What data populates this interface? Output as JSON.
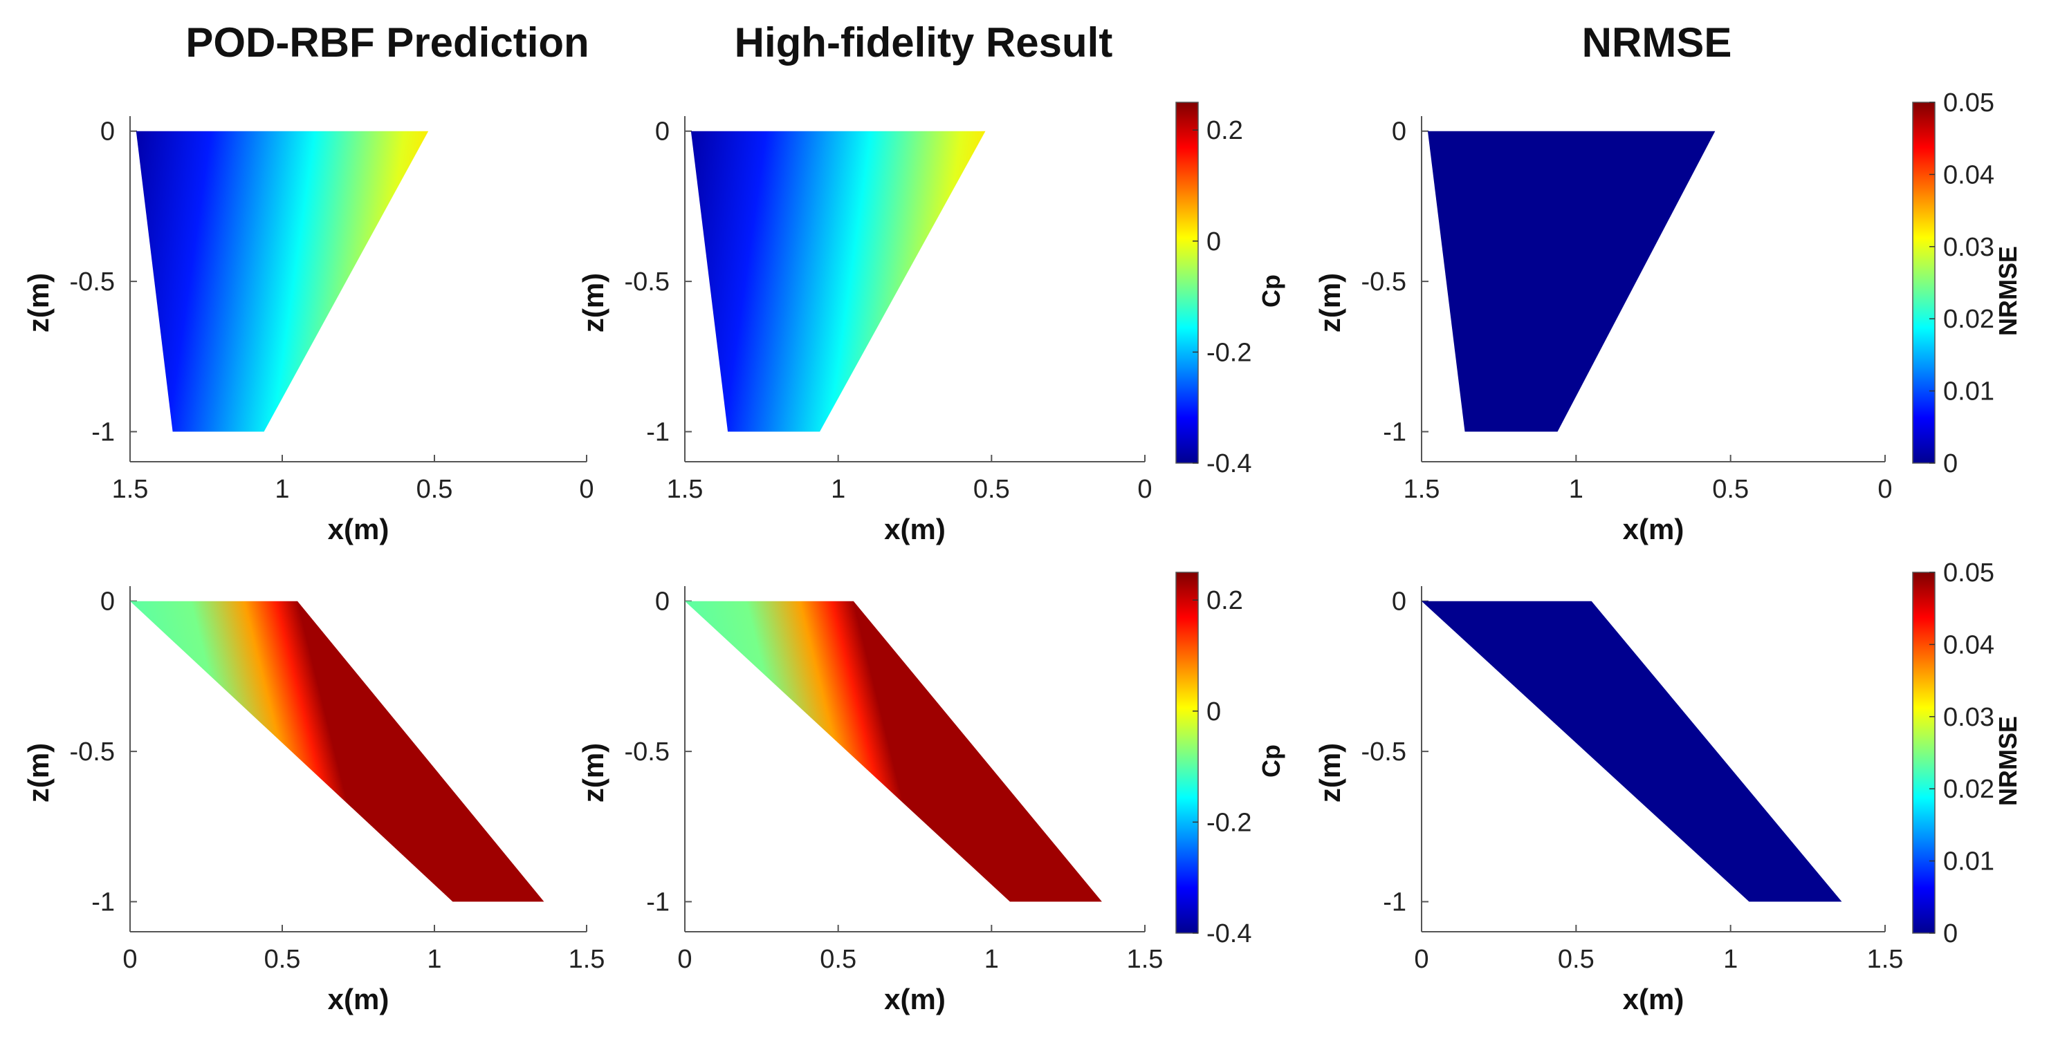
{
  "figure": {
    "column_titles": [
      "POD-RBF Prediction",
      "High-fidelity Result",
      "NRMSE"
    ]
  },
  "colormaps": {
    "jet": [
      "#00008f",
      "#0000ff",
      "#0080ff",
      "#00ffff",
      "#80ff80",
      "#ffff00",
      "#ff8000",
      "#ff0000",
      "#800000"
    ]
  },
  "chart_data": [
    {
      "type": "heatmap",
      "title": "POD-RBF Prediction",
      "row": 0,
      "col": 0,
      "xlabel": "x(m)",
      "ylabel": "z(m)",
      "xlim": [
        0,
        1.5
      ],
      "ylim": [
        -1.1,
        0.05
      ],
      "x_reversed": true,
      "xticks": [
        1.5,
        1,
        0.5,
        0
      ],
      "xticklabels": [
        "1.5",
        "1",
        "0.5",
        "0"
      ],
      "yticks": [
        0,
        -0.5,
        -1
      ],
      "yticklabels": [
        "0",
        "-0.5",
        "-1"
      ],
      "wing": {
        "root_le": [
          0.52,
          0
        ],
        "root_te": [
          1.48,
          0
        ],
        "tip_le": [
          1.06,
          -1
        ],
        "tip_te": [
          1.36,
          -1
        ]
      },
      "field": "Cp",
      "value_range": [
        -0.38,
        0.02
      ],
      "colorbar": null
    },
    {
      "type": "heatmap",
      "title": "High-fidelity Result",
      "row": 0,
      "col": 1,
      "xlabel": "x(m)",
      "ylabel": "z(m)",
      "xlim": [
        0,
        1.5
      ],
      "ylim": [
        -1.1,
        0.05
      ],
      "x_reversed": true,
      "xticks": [
        1.5,
        1,
        0.5,
        0
      ],
      "xticklabels": [
        "1.5",
        "1",
        "0.5",
        "0"
      ],
      "yticks": [
        0,
        -0.5,
        -1
      ],
      "yticklabels": [
        "0",
        "-0.5",
        "-1"
      ],
      "wing": {
        "root_le": [
          0.52,
          0
        ],
        "root_te": [
          1.48,
          0
        ],
        "tip_le": [
          1.06,
          -1
        ],
        "tip_te": [
          1.36,
          -1
        ]
      },
      "field": "Cp",
      "value_range": [
        -0.38,
        0.02
      ],
      "colorbar": {
        "label": "Cp",
        "range": [
          -0.4,
          0.25
        ],
        "ticks": [
          0.2,
          0,
          -0.2,
          -0.4
        ],
        "ticklabels": [
          "0.2",
          "0",
          "-0.2",
          "-0.4"
        ]
      }
    },
    {
      "type": "heatmap",
      "title": "NRMSE",
      "row": 0,
      "col": 2,
      "xlabel": "x(m)",
      "ylabel": "z(m)",
      "xlim": [
        0,
        1.5
      ],
      "ylim": [
        -1.1,
        0.05
      ],
      "x_reversed": true,
      "xticks": [
        1.5,
        1,
        0.5,
        0
      ],
      "xticklabels": [
        "1.5",
        "1",
        "0.5",
        "0"
      ],
      "yticks": [
        0,
        -0.5,
        -1
      ],
      "yticklabels": [
        "0",
        "-0.5",
        "-1"
      ],
      "wing": {
        "root_le": [
          0.55,
          0
        ],
        "root_te": [
          1.48,
          0
        ],
        "tip_le": [
          1.06,
          -1
        ],
        "tip_te": [
          1.36,
          -1
        ]
      },
      "field": "NRMSE",
      "value_range": [
        0,
        0
      ],
      "colorbar": {
        "label": "NRMSE",
        "range": [
          0,
          0.05
        ],
        "ticks": [
          0.05,
          0.04,
          0.03,
          0.02,
          0.01,
          0
        ],
        "ticklabels": [
          "0.05",
          "0.04",
          "0.03",
          "0.02",
          "0.01",
          "0"
        ]
      }
    },
    {
      "type": "heatmap",
      "title": "",
      "row": 1,
      "col": 0,
      "xlabel": "x(m)",
      "ylabel": "z(m)",
      "xlim": [
        0,
        1.5
      ],
      "ylim": [
        -1.1,
        0.05
      ],
      "x_reversed": false,
      "xticks": [
        0,
        0.5,
        1,
        1.5
      ],
      "xticklabels": [
        "0",
        "0.5",
        "1",
        "1.5"
      ],
      "yticks": [
        0,
        -0.5,
        -1
      ],
      "yticklabels": [
        "0",
        "-0.5",
        "-1"
      ],
      "wing": {
        "root_le": [
          0,
          0
        ],
        "root_te": [
          0.55,
          0
        ],
        "tip_le": [
          1.06,
          -1
        ],
        "tip_te": [
          1.36,
          -1
        ]
      },
      "field": "Cp",
      "value_range": [
        0.23,
        -0.1
      ],
      "colorbar": null
    },
    {
      "type": "heatmap",
      "title": "",
      "row": 1,
      "col": 1,
      "xlabel": "x(m)",
      "ylabel": "z(m)",
      "xlim": [
        0,
        1.5
      ],
      "ylim": [
        -1.1,
        0.05
      ],
      "x_reversed": false,
      "xticks": [
        0,
        0.5,
        1,
        1.5
      ],
      "xticklabels": [
        "0",
        "0.5",
        "1",
        "1.5"
      ],
      "yticks": [
        0,
        -0.5,
        -1
      ],
      "yticklabels": [
        "0",
        "-0.5",
        "-1"
      ],
      "wing": {
        "root_le": [
          0,
          0
        ],
        "root_te": [
          0.55,
          0
        ],
        "tip_le": [
          1.06,
          -1
        ],
        "tip_te": [
          1.36,
          -1
        ]
      },
      "field": "Cp",
      "value_range": [
        0.23,
        -0.1
      ],
      "colorbar": {
        "label": "Cp",
        "range": [
          -0.4,
          0.25
        ],
        "ticks": [
          0.2,
          0,
          -0.2,
          -0.4
        ],
        "ticklabels": [
          "0.2",
          "0",
          "-0.2",
          "-0.4"
        ]
      }
    },
    {
      "type": "heatmap",
      "title": "",
      "row": 1,
      "col": 2,
      "xlabel": "x(m)",
      "ylabel": "z(m)",
      "xlim": [
        0,
        1.5
      ],
      "ylim": [
        -1.1,
        0.05
      ],
      "x_reversed": false,
      "xticks": [
        0,
        0.5,
        1,
        1.5
      ],
      "xticklabels": [
        "0",
        "0.5",
        "1",
        "1.5"
      ],
      "yticks": [
        0,
        -0.5,
        -1
      ],
      "yticklabels": [
        "0",
        "-0.5",
        "-1"
      ],
      "wing": {
        "root_le": [
          0,
          0
        ],
        "root_te": [
          0.55,
          0
        ],
        "tip_le": [
          1.06,
          -1
        ],
        "tip_te": [
          1.36,
          -1
        ]
      },
      "field": "NRMSE",
      "value_range": [
        0,
        0
      ],
      "colorbar": {
        "label": "NRMSE",
        "range": [
          0,
          0.05
        ],
        "ticks": [
          0.05,
          0.04,
          0.03,
          0.02,
          0.01,
          0
        ],
        "ticklabels": [
          "0.05",
          "0.04",
          "0.03",
          "0.02",
          "0.01",
          "0"
        ]
      }
    }
  ]
}
